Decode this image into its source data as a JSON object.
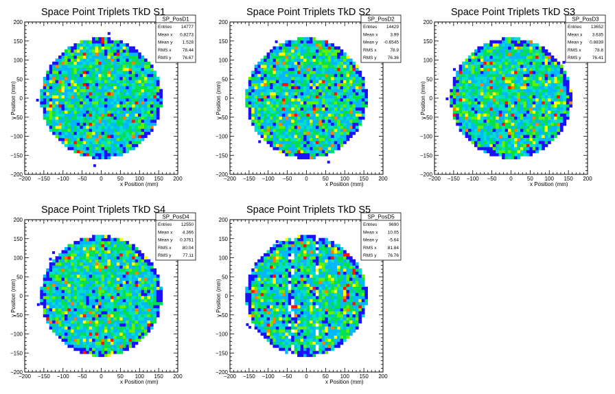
{
  "chart_data": [
    {
      "type": "heatmap",
      "title": "Space Point Triplets TkD S1",
      "xlabel": "x Position (mm)",
      "ylabel": "y Position (mm)",
      "xlim": [
        -200,
        200
      ],
      "ylim": [
        -200,
        200
      ],
      "xticks": [
        "−200",
        "−150",
        "−100",
        "−50",
        "0",
        "50",
        "100",
        "150",
        "200"
      ],
      "yticks": [
        "−200",
        "−150",
        "−100",
        "−50",
        "0",
        "50",
        "100",
        "150",
        "200"
      ],
      "disk_radius": 160,
      "stats": {
        "name": "SP_PosD1",
        "rows": [
          {
            "label": "Entries",
            "value": "14777"
          },
          {
            "label": "Mean x",
            "value": "0.8273"
          },
          {
            "label": "Mean y",
            "value": "1.528"
          },
          {
            "label": "RMS x",
            "value": "78.44"
          },
          {
            "label": "RMS y",
            "value": "76.67"
          }
        ]
      }
    },
    {
      "type": "heatmap",
      "title": "Space Point Triplets TkD S2",
      "xlabel": "x Position (mm)",
      "ylabel": "y Position (mm)",
      "xlim": [
        -200,
        200
      ],
      "ylim": [
        -200,
        200
      ],
      "xticks": [
        "−200",
        "−150",
        "−100",
        "−50",
        "0",
        "50",
        "100",
        "150",
        "200"
      ],
      "yticks": [
        "−200",
        "−150",
        "−100",
        "−50",
        "0",
        "50",
        "100",
        "150",
        "200"
      ],
      "disk_radius": 160,
      "stats": {
        "name": "SP_PosD2",
        "rows": [
          {
            "label": "Entries",
            "value": "14429"
          },
          {
            "label": "Mean x",
            "value": "3.99"
          },
          {
            "label": "Mean y",
            "value": "-0.6545"
          },
          {
            "label": "RMS x",
            "value": "78.9"
          },
          {
            "label": "RMS y",
            "value": "76.36"
          }
        ]
      }
    },
    {
      "type": "heatmap",
      "title": "Space Point Triplets TkD S3",
      "xlabel": "x Position (mm)",
      "ylabel": "y Position (mm)",
      "xlim": [
        -200,
        200
      ],
      "ylim": [
        -200,
        200
      ],
      "xticks": [
        "−200",
        "−150",
        "−100",
        "−50",
        "0",
        "50",
        "100",
        "150",
        "200"
      ],
      "yticks": [
        "−200",
        "−150",
        "−100",
        "−50",
        "0",
        "50",
        "100",
        "150",
        "200"
      ],
      "disk_radius": 160,
      "stats": {
        "name": "SP_PosD3",
        "rows": [
          {
            "label": "Entries",
            "value": "13652"
          },
          {
            "label": "Mean x",
            "value": "3.635"
          },
          {
            "label": "Mean y",
            "value": "0.8839"
          },
          {
            "label": "RMS x",
            "value": "78.8"
          },
          {
            "label": "RMS y",
            "value": "76.41"
          }
        ]
      }
    },
    {
      "type": "heatmap",
      "title": "Space Point Triplets TkD S4",
      "xlabel": "x Position (mm)",
      "ylabel": "y Position (mm)",
      "xlim": [
        -200,
        200
      ],
      "ylim": [
        -200,
        200
      ],
      "xticks": [
        "−200",
        "−150",
        "−100",
        "−50",
        "0",
        "50",
        "100",
        "150",
        "200"
      ],
      "yticks": [
        "−200",
        "−150",
        "−100",
        "−50",
        "0",
        "50",
        "100",
        "150",
        "200"
      ],
      "disk_radius": 160,
      "stats": {
        "name": "SP_PosD4",
        "rows": [
          {
            "label": "Entries",
            "value": "12550"
          },
          {
            "label": "Mean x",
            "value": "4.366"
          },
          {
            "label": "Mean y",
            "value": "0.3761"
          },
          {
            "label": "RMS x",
            "value": "80.04"
          },
          {
            "label": "RMS y",
            "value": "77.11"
          }
        ]
      }
    },
    {
      "type": "heatmap",
      "title": "Space Point Triplets TkD S5",
      "xlabel": "x Position (mm)",
      "ylabel": "y Position (mm)",
      "xlim": [
        -200,
        200
      ],
      "ylim": [
        -200,
        200
      ],
      "xticks": [
        "−200",
        "−150",
        "−100",
        "−50",
        "0",
        "50",
        "100",
        "150",
        "200"
      ],
      "yticks": [
        "−200",
        "−150",
        "−100",
        "−50",
        "0",
        "50",
        "100",
        "150",
        "200"
      ],
      "disk_radius": 160,
      "stats": {
        "name": "SP_PosD5",
        "rows": [
          {
            "label": "Entries",
            "value": "9690"
          },
          {
            "label": "Mean x",
            "value": "10.05"
          },
          {
            "label": "Mean y",
            "value": "-5.64"
          },
          {
            "label": "RMS x",
            "value": "81.84"
          },
          {
            "label": "RMS y",
            "value": "76.76"
          }
        ]
      }
    }
  ],
  "colors": {
    "palette": [
      "#1a10ff",
      "#00b8ff",
      "#00e0c8",
      "#00e050",
      "#60f000",
      "#ffff00",
      "#ff8000",
      "#ff1000"
    ],
    "frame": "#000000",
    "background": "#ffffff"
  }
}
